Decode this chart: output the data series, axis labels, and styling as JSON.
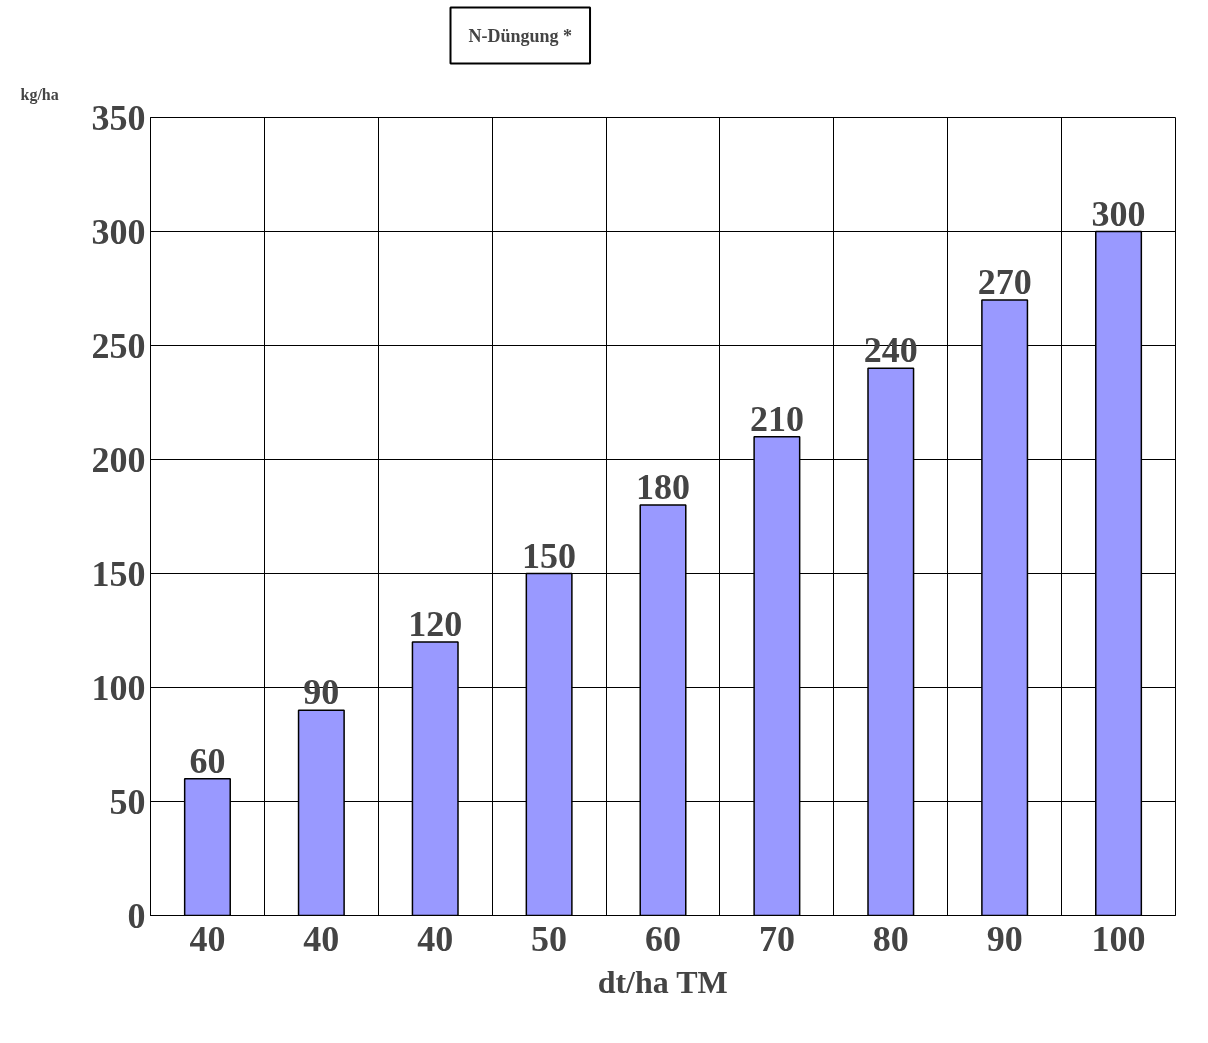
{
  "chart_data": {
    "type": "bar",
    "title": "N-Düngung *",
    "ylabel": "kg/ha",
    "xlabel": "dt/ha TM",
    "categories": [
      "40",
      "40",
      "40",
      "50",
      "60",
      "70",
      "80",
      "90",
      "100"
    ],
    "values": [
      60,
      90,
      120,
      150,
      180,
      210,
      240,
      270,
      300
    ],
    "color": "#9999ff",
    "ylim": [
      0,
      350
    ],
    "yticks": [
      0,
      50,
      100,
      150,
      200,
      250,
      300,
      350
    ],
    "grid": true,
    "data_labels": true
  }
}
